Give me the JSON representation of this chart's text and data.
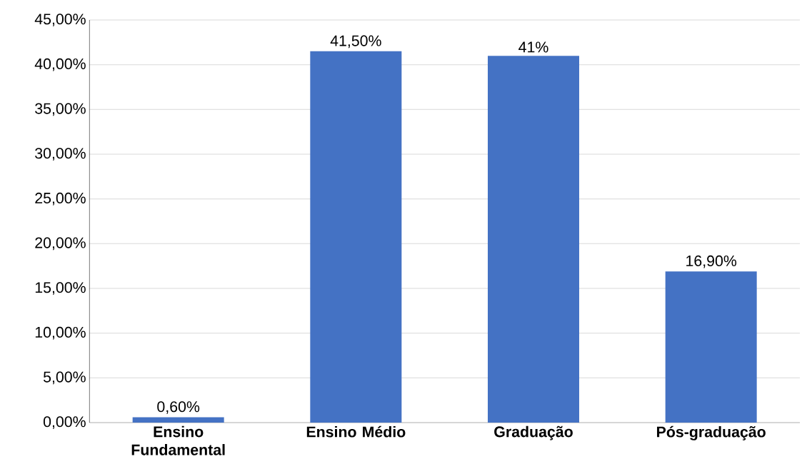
{
  "chart_data": {
    "type": "bar",
    "categories": [
      "Ensino Fundamental",
      "Ensino Médio",
      "Graduação",
      "Pós-graduação"
    ],
    "values": [
      0.6,
      41.5,
      41,
      16.9
    ],
    "value_labels": [
      "0,60%",
      "41,50%",
      "41%",
      "16,90%"
    ],
    "color": "#4472c4",
    "ylim": [
      0,
      45
    ],
    "yticks": [
      {
        "value": 0,
        "label": "0,00%"
      },
      {
        "value": 5,
        "label": "5,00%"
      },
      {
        "value": 10,
        "label": "10,00%"
      },
      {
        "value": 15,
        "label": "15,00%"
      },
      {
        "value": 20,
        "label": "20,00%"
      },
      {
        "value": 25,
        "label": "25,00%"
      },
      {
        "value": 30,
        "label": "30,00%"
      },
      {
        "value": 35,
        "label": "35,00%"
      },
      {
        "value": 40,
        "label": "40,00%"
      },
      {
        "value": 45,
        "label": "45,00%"
      }
    ],
    "grid": "y"
  }
}
